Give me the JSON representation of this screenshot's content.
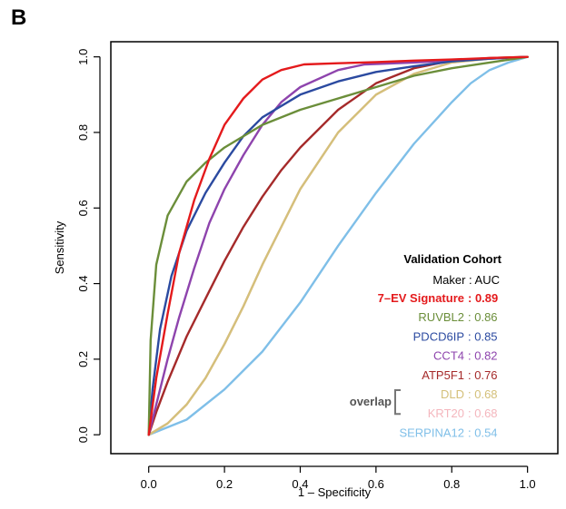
{
  "panel_label": "B",
  "chart_data": {
    "type": "line",
    "title": "",
    "xlabel": "1 – Specificity",
    "ylabel": "Sensitivity",
    "xlim": [
      -0.1,
      1.08
    ],
    "ylim": [
      -0.05,
      1.04
    ],
    "xticks": [
      0.0,
      0.2,
      0.4,
      0.6,
      0.8,
      1.0
    ],
    "xtick_labels": [
      "0.0",
      "0.2",
      "0.4",
      "0.6",
      "0.8",
      "1.0"
    ],
    "yticks": [
      0.0,
      0.2,
      0.4,
      0.6,
      0.8,
      1.0
    ],
    "ytick_labels": [
      "0.0",
      "0.2",
      "0.4",
      "0.6",
      "0.8",
      "1.0"
    ],
    "grid": false,
    "legend": {
      "title": "Validation Cohort",
      "header": "Maker  : AUC",
      "placement": "bottom-right",
      "overlap_label": "overlap"
    },
    "series": [
      {
        "name": "7–EV Signature",
        "auc_label": ": 0.89",
        "color": "#e41a1c",
        "bold": true,
        "x": [
          0.0,
          0.02,
          0.05,
          0.08,
          0.12,
          0.16,
          0.2,
          0.25,
          0.3,
          0.35,
          0.41,
          0.5,
          0.6,
          0.7,
          0.8,
          0.9,
          1.0
        ],
        "y": [
          0.0,
          0.15,
          0.32,
          0.48,
          0.62,
          0.73,
          0.82,
          0.89,
          0.94,
          0.965,
          0.98,
          0.983,
          0.986,
          0.99,
          0.993,
          0.997,
          1.0
        ]
      },
      {
        "name": "RUVBL2",
        "auc_label": ": 0.86",
        "color": "#6b8e3a",
        "bold": false,
        "x": [
          0.0,
          0.005,
          0.02,
          0.05,
          0.1,
          0.15,
          0.2,
          0.3,
          0.4,
          0.5,
          0.6,
          0.7,
          0.8,
          0.9,
          1.0
        ],
        "y": [
          0.0,
          0.25,
          0.45,
          0.58,
          0.67,
          0.72,
          0.76,
          0.82,
          0.86,
          0.89,
          0.92,
          0.95,
          0.97,
          0.985,
          1.0
        ]
      },
      {
        "name": "PDCD6IP",
        "auc_label": ": 0.85",
        "color": "#2b4aa0",
        "bold": false,
        "x": [
          0.0,
          0.01,
          0.03,
          0.06,
          0.1,
          0.15,
          0.2,
          0.25,
          0.3,
          0.4,
          0.5,
          0.6,
          0.7,
          0.8,
          0.9,
          1.0
        ],
        "y": [
          0.0,
          0.12,
          0.28,
          0.42,
          0.54,
          0.64,
          0.72,
          0.79,
          0.84,
          0.9,
          0.935,
          0.96,
          0.975,
          0.988,
          0.995,
          1.0
        ]
      },
      {
        "name": "CCT4",
        "auc_label": ": 0.82",
        "color": "#8e44ad",
        "bold": false,
        "x": [
          0.0,
          0.02,
          0.05,
          0.08,
          0.12,
          0.16,
          0.2,
          0.25,
          0.3,
          0.35,
          0.4,
          0.5,
          0.57,
          0.7,
          0.8,
          0.9,
          1.0
        ],
        "y": [
          0.0,
          0.08,
          0.2,
          0.31,
          0.44,
          0.56,
          0.65,
          0.74,
          0.82,
          0.88,
          0.92,
          0.965,
          0.98,
          0.985,
          0.99,
          0.995,
          1.0
        ]
      },
      {
        "name": "ATP5F1",
        "auc_label": ": 0.76",
        "color": "#a52a2a",
        "bold": false,
        "x": [
          0.0,
          0.02,
          0.05,
          0.1,
          0.15,
          0.2,
          0.25,
          0.3,
          0.35,
          0.4,
          0.5,
          0.6,
          0.7,
          0.8,
          0.9,
          1.0
        ],
        "y": [
          0.0,
          0.06,
          0.14,
          0.26,
          0.36,
          0.46,
          0.55,
          0.63,
          0.7,
          0.76,
          0.86,
          0.93,
          0.97,
          0.99,
          0.997,
          1.0
        ]
      },
      {
        "name": "DLD",
        "auc_label": ": 0.68",
        "color": "#d4c07a",
        "bold": false,
        "x": [
          0.0,
          0.05,
          0.1,
          0.15,
          0.2,
          0.25,
          0.3,
          0.35,
          0.4,
          0.5,
          0.6,
          0.7,
          0.8,
          0.9,
          1.0
        ],
        "y": [
          0.0,
          0.03,
          0.08,
          0.15,
          0.24,
          0.34,
          0.45,
          0.55,
          0.65,
          0.8,
          0.9,
          0.955,
          0.985,
          0.995,
          1.0
        ]
      },
      {
        "name": "KRT20",
        "auc_label": ": 0.68",
        "color": "#f4b6bd",
        "bold": false,
        "x": [
          0.0,
          0.05,
          0.1,
          0.15,
          0.2,
          0.25,
          0.3,
          0.35,
          0.4,
          0.5,
          0.6,
          0.7,
          0.8,
          0.9,
          1.0
        ],
        "y": [
          0.0,
          0.03,
          0.08,
          0.15,
          0.24,
          0.34,
          0.45,
          0.55,
          0.65,
          0.8,
          0.9,
          0.955,
          0.985,
          0.995,
          1.0
        ]
      },
      {
        "name": "SERPINA12",
        "auc_label": ": 0.54",
        "color": "#7fbfe8",
        "bold": false,
        "x": [
          0.0,
          0.1,
          0.2,
          0.3,
          0.4,
          0.5,
          0.6,
          0.7,
          0.8,
          0.85,
          0.9,
          0.95,
          1.0
        ],
        "y": [
          0.0,
          0.04,
          0.12,
          0.22,
          0.35,
          0.5,
          0.64,
          0.77,
          0.88,
          0.93,
          0.965,
          0.985,
          1.0
        ]
      }
    ]
  }
}
